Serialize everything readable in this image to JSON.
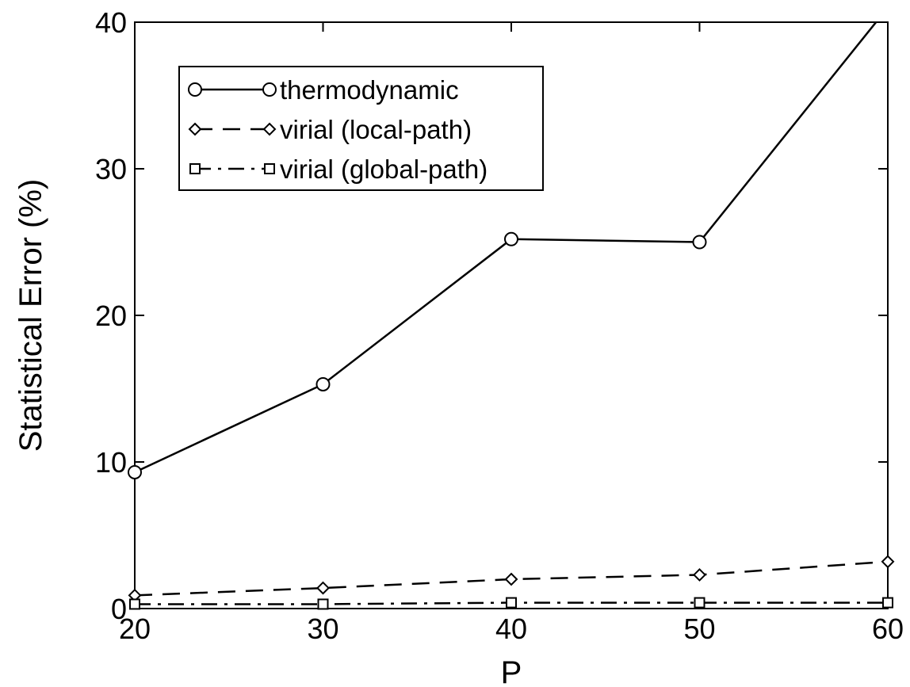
{
  "chart_data": {
    "type": "line",
    "title": "",
    "xlabel": "P",
    "ylabel": "Statistical Error (%)",
    "x": [
      20,
      30,
      40,
      50,
      60
    ],
    "xlim": [
      20,
      60
    ],
    "ylim": [
      0,
      40
    ],
    "xticks": [
      "20",
      "30",
      "40",
      "50",
      "60"
    ],
    "yticks": [
      "0",
      "10",
      "20",
      "30",
      "40"
    ],
    "grid": false,
    "legend_position": "top-left",
    "series": [
      {
        "name": "thermodynamic",
        "marker": "circle",
        "line_style": "solid",
        "values": [
          9.3,
          15.3,
          25.2,
          25.0,
          41.0
        ]
      },
      {
        "name": "virial (local-path)",
        "marker": "diamond",
        "line_style": "dashed",
        "values": [
          0.9,
          1.4,
          2.0,
          2.3,
          3.2
        ]
      },
      {
        "name": "virial (global-path)",
        "marker": "square",
        "line_style": "dash-dot",
        "values": [
          0.3,
          0.3,
          0.4,
          0.4,
          0.4
        ]
      }
    ]
  }
}
